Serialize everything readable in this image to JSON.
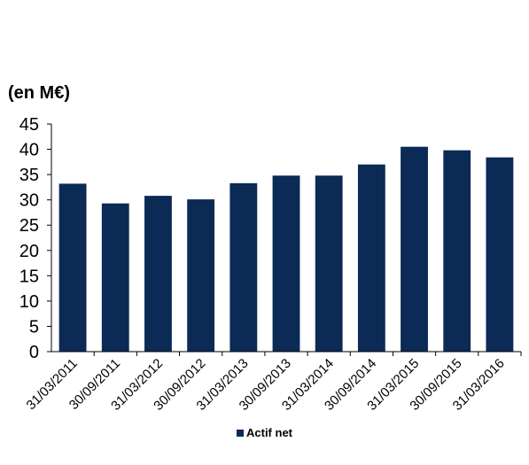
{
  "chart_data": {
    "type": "bar",
    "unit_label": "(en M€)",
    "categories": [
      "31/03/2011",
      "30/09/2011",
      "31/03/2012",
      "30/09/2012",
      "31/03/2013",
      "30/09/2013",
      "31/03/2014",
      "30/09/2014",
      "31/03/2015",
      "30/09/2015",
      "31/03/2016"
    ],
    "series": [
      {
        "name": "Actif net",
        "values": [
          33.2,
          29.3,
          30.8,
          30.1,
          33.3,
          34.8,
          34.8,
          37.0,
          40.5,
          39.8,
          38.4
        ]
      }
    ],
    "ylim": [
      0,
      45
    ],
    "yticks": [
      0,
      5,
      10,
      15,
      20,
      25,
      30,
      35,
      40,
      45
    ],
    "grid": false,
    "legend_position": "bottom-center",
    "bar_color": "#0b2a55"
  }
}
